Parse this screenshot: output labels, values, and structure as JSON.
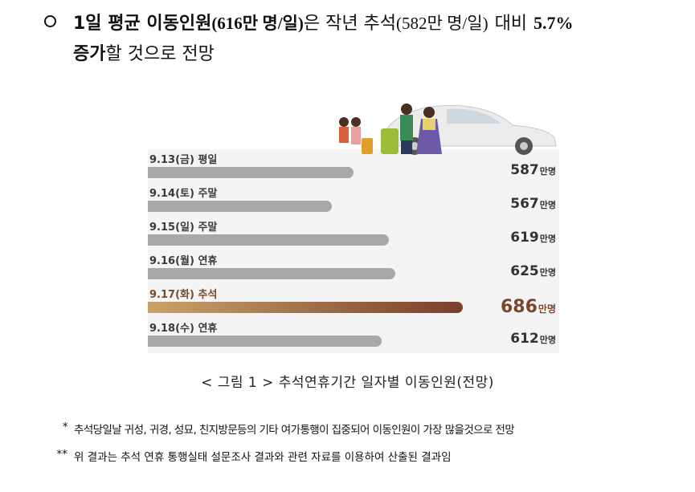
{
  "headline": {
    "part1_bold": "1일 평균 이동인원",
    "part2_paren": "(616만 명/일)",
    "part3": "은 작년 추석",
    "part4_paren": "(582만 명/일)",
    "part5": "대비",
    "part6_num": "5.7%",
    "line2_bold": "증가",
    "line2_rest": "할 것으로 전망"
  },
  "chart_data": {
    "type": "bar",
    "categories": [
      "9.13(금) 평일",
      "9.14(토) 주말",
      "9.15(일) 주말",
      "9.16(월) 연휴",
      "9.17(화) 추석",
      "9.18(수) 연휴"
    ],
    "values": [
      587,
      567,
      619,
      625,
      686,
      612
    ],
    "unit": "만명",
    "highlight_index": 4,
    "colors": {
      "bar": "#a8a8a8",
      "highlight_start": "#c9a36a",
      "highlight_end": "#7a3f2a",
      "panel": "#f4f4f4"
    }
  },
  "caption": "< 그림 1 > 추석연휴기간 일자별 이동인원(전망)",
  "notes": [
    {
      "mark": "*",
      "text": "추석당일날 귀성, 귀경, 성묘, 친지방문등의 기타 여가통행이 집중되어 이동인원이 가장 많을것으로 전망"
    },
    {
      "mark": "**",
      "text": "위 결과는 추석 연휴 통행실태 설문조사 결과와 관련 자료를 이용하여 산출된 결과임"
    }
  ],
  "illustration": {
    "icon": "family-travel-car-icon"
  }
}
